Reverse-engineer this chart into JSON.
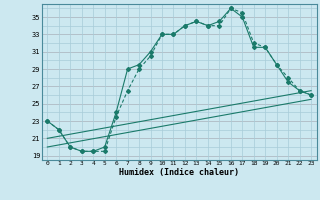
{
  "title": "",
  "xlabel": "Humidex (Indice chaleur)",
  "ylabel": "",
  "background_color": "#cce8f0",
  "grid_color": "#a8ccd8",
  "red_grid_color": "#d09090",
  "line_color": "#1a7a6a",
  "xlim": [
    -0.5,
    23.5
  ],
  "ylim": [
    18.5,
    36.5
  ],
  "yticks": [
    19,
    21,
    23,
    25,
    27,
    29,
    31,
    33,
    35
  ],
  "xticks": [
    0,
    1,
    2,
    3,
    4,
    5,
    6,
    7,
    8,
    9,
    10,
    11,
    12,
    13,
    14,
    15,
    16,
    17,
    18,
    19,
    20,
    21,
    22,
    23
  ],
  "series": [
    {
      "x": [
        0,
        1,
        2,
        3,
        4,
        5,
        6,
        7,
        8,
        9,
        10,
        11,
        12,
        13,
        14,
        15,
        16,
        17,
        18,
        19,
        20,
        21,
        22,
        23
      ],
      "y": [
        23,
        22,
        20,
        19.5,
        19.5,
        19.5,
        23.5,
        26.5,
        29,
        30.5,
        33,
        33,
        34,
        34.5,
        34,
        34,
        36,
        35.5,
        32,
        31.5,
        29.5,
        28,
        26.5,
        26
      ],
      "style": "dotted",
      "marker": "D",
      "markersize": 2.0,
      "linewidth": 0.8
    },
    {
      "x": [
        0,
        1,
        2,
        3,
        4,
        5,
        6,
        7,
        8,
        9,
        10,
        11,
        12,
        13,
        14,
        15,
        16,
        17,
        18,
        19,
        20,
        21,
        22,
        23
      ],
      "y": [
        23,
        22,
        20,
        19.5,
        19.5,
        20,
        24,
        29,
        29.5,
        31,
        33,
        33,
        34,
        34.5,
        34,
        34.5,
        36,
        35,
        31.5,
        31.5,
        29.5,
        27.5,
        26.5,
        26
      ],
      "style": "solid",
      "marker": "D",
      "markersize": 2.0,
      "linewidth": 0.8
    },
    {
      "x": [
        0,
        23
      ],
      "y": [
        20.0,
        25.5
      ],
      "style": "solid",
      "marker": null,
      "markersize": 0,
      "linewidth": 0.8
    },
    {
      "x": [
        0,
        23
      ],
      "y": [
        21.0,
        26.5
      ],
      "style": "solid",
      "marker": null,
      "markersize": 0,
      "linewidth": 0.8
    }
  ]
}
